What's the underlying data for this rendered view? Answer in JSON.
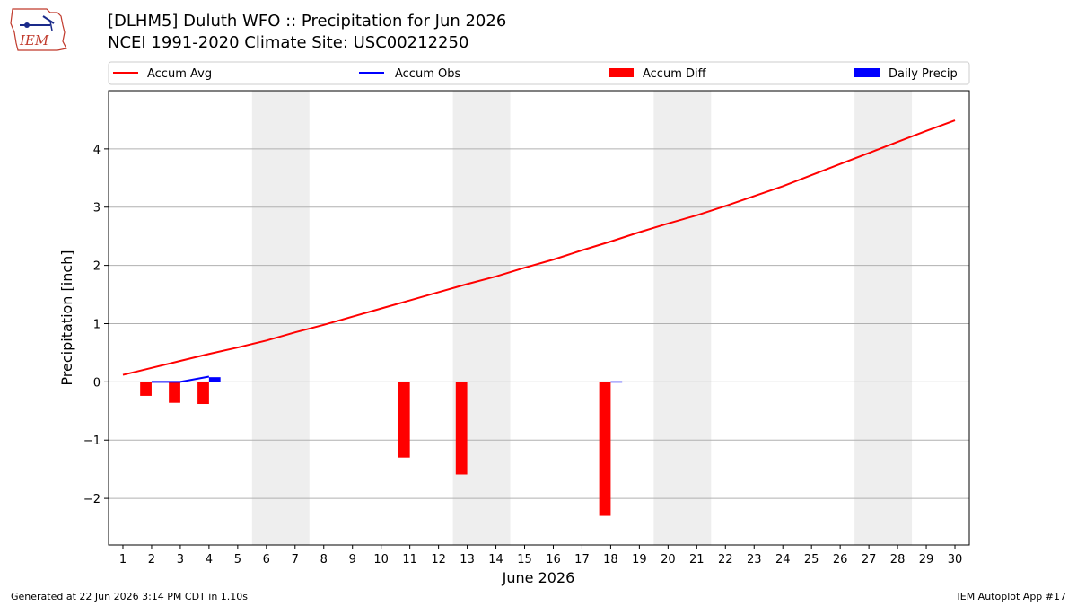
{
  "header": {
    "title_line1": "[DLHM5] Duluth WFO :: Precipitation for Jun 2026",
    "title_line2": "NCEI 1991-2020 Climate Site: USC00212250",
    "logo_text": "IEM"
  },
  "footer": {
    "generated": "Generated at 22 Jun 2026 3:14 PM CDT in 1.10s",
    "app": "IEM Autoplot App #17"
  },
  "colors": {
    "accum_avg": "#ff0000",
    "accum_obs": "#0000ff",
    "accum_diff": "#ff0000",
    "daily_precip": "#0000ff",
    "weekend_shade": "#eeeeee",
    "grid": "#b0b0b0"
  },
  "chart_data": {
    "type": "bar",
    "xlabel": "June 2026",
    "ylabel": "Precipitation [inch]",
    "ylim": [
      -2.8,
      5.0
    ],
    "yticks": [
      -2,
      -1,
      0,
      1,
      2,
      3,
      4
    ],
    "xlim": [
      0.5,
      30.5
    ],
    "x": [
      1,
      2,
      3,
      4,
      5,
      6,
      7,
      8,
      9,
      10,
      11,
      12,
      13,
      14,
      15,
      16,
      17,
      18,
      19,
      20,
      21,
      22,
      23,
      24,
      25,
      26,
      27,
      28,
      29,
      30
    ],
    "grid": "horizontal",
    "legend_position": "top",
    "weekend_spans": [
      [
        5.5,
        7.5
      ],
      [
        12.5,
        14.5
      ],
      [
        19.5,
        21.5
      ],
      [
        26.5,
        28.5
      ]
    ],
    "legend": [
      {
        "label": "Accum Avg",
        "kind": "line",
        "color": "#ff0000"
      },
      {
        "label": "Accum Obs",
        "kind": "line",
        "color": "#0000ff"
      },
      {
        "label": "Accum Diff",
        "kind": "bar",
        "color": "#ff0000"
      },
      {
        "label": "Daily Precip",
        "kind": "bar",
        "color": "#0000ff"
      }
    ],
    "series": [
      {
        "name": "Accum Avg",
        "type": "line",
        "x": [
          1,
          2,
          3,
          4,
          5,
          6,
          7,
          8,
          9,
          10,
          11,
          12,
          13,
          14,
          15,
          16,
          17,
          18,
          19,
          20,
          21,
          22,
          23,
          24,
          25,
          26,
          27,
          28,
          29,
          30
        ],
        "values": [
          0.12,
          0.24,
          0.36,
          0.48,
          0.59,
          0.71,
          0.85,
          0.98,
          1.12,
          1.26,
          1.4,
          1.54,
          1.68,
          1.81,
          1.96,
          2.1,
          2.26,
          2.41,
          2.57,
          2.72,
          2.86,
          3.02,
          3.19,
          3.36,
          3.55,
          3.74,
          3.93,
          4.12,
          4.31,
          4.49
        ]
      },
      {
        "name": "Accum Obs",
        "type": "line",
        "x": [
          2,
          3,
          4
        ],
        "values": [
          0.0,
          0.0,
          0.09
        ]
      },
      {
        "name": "Accum Diff",
        "type": "bar",
        "x": [
          2,
          3,
          4,
          11,
          13,
          18
        ],
        "values": [
          -0.24,
          -0.36,
          -0.38,
          -1.3,
          -1.59,
          -2.3
        ]
      },
      {
        "name": "Daily Precip",
        "type": "bar",
        "x": [
          4,
          18
        ],
        "values": [
          0.08,
          0.01
        ]
      }
    ]
  }
}
